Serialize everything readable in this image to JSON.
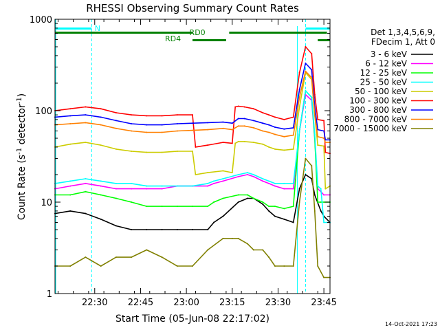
{
  "chart_data": {
    "type": "line",
    "title": "RHESSI Observing Summary Count Rates",
    "xlabel": "Start Time (05-Jun-08 22:17:02)",
    "ylabel_main": "Count Rate (s",
    "ylabel_sup1": "-1",
    "ylabel_mid": " detector",
    "ylabel_sup2": "-1",
    "ylabel_end": ")",
    "yscale": "log",
    "ylim": [
      1,
      1000
    ],
    "xlim_minutes": [
      0,
      90
    ],
    "x_tick_minutes": [
      13,
      28,
      43,
      58,
      73,
      88
    ],
    "x_tick_labels": [
      "22:30",
      "22:45",
      "23:00",
      "23:15",
      "23:30",
      "23:45"
    ],
    "y_tick_values": [
      1,
      10,
      100,
      1000
    ],
    "y_tick_labels": [
      "1",
      "10",
      "100",
      "1000"
    ],
    "footer_date": "14-Oct-2021 17:23",
    "legend_header": [
      "Det 1,3,4,5,6,9,",
      "FDecim 1, Att 0"
    ],
    "annotations": {
      "night": "N",
      "rd0": "RD0",
      "rd4": "RD4"
    },
    "state_bars": {
      "night": [
        [
          0,
          12
        ],
        [
          82,
          90
        ]
      ],
      "rd0": [
        [
          0,
          45
        ],
        [
          57,
          89
        ]
      ],
      "rd4": [
        [
          45,
          56
        ],
        [
          86,
          90
        ]
      ]
    },
    "night_lines_minutes": [
      12,
      82
    ],
    "colors": {
      "night": "#00ffff",
      "rd": "#008000"
    },
    "series": [
      {
        "name": "3 - 6 keV",
        "color": "#000000",
        "points": [
          [
            0,
            7.5
          ],
          [
            5,
            8
          ],
          [
            10,
            7.5
          ],
          [
            15,
            6.5
          ],
          [
            20,
            5.5
          ],
          [
            25,
            5
          ],
          [
            30,
            5
          ],
          [
            35,
            5
          ],
          [
            40,
            5
          ],
          [
            45,
            5
          ],
          [
            50,
            5
          ],
          [
            52,
            6
          ],
          [
            55,
            7
          ],
          [
            60,
            10
          ],
          [
            63,
            11
          ],
          [
            65,
            11
          ],
          [
            68,
            9.5
          ],
          [
            70,
            8
          ],
          [
            72,
            7
          ],
          [
            75,
            6.5
          ],
          [
            78,
            6
          ],
          [
            80,
            14
          ],
          [
            82,
            20
          ],
          [
            84,
            18
          ],
          [
            85,
            12
          ],
          [
            87,
            8
          ],
          [
            88,
            7
          ],
          [
            90,
            6
          ]
        ]
      },
      {
        "name": "6 - 12 keV",
        "color": "#ff00ff",
        "points": [
          [
            0,
            14
          ],
          [
            5,
            15
          ],
          [
            10,
            16
          ],
          [
            15,
            15
          ],
          [
            20,
            14
          ],
          [
            25,
            14
          ],
          [
            30,
            14
          ],
          [
            35,
            14
          ],
          [
            40,
            15
          ],
          [
            45,
            15
          ],
          [
            50,
            15
          ],
          [
            52,
            16
          ],
          [
            55,
            17
          ],
          [
            60,
            19
          ],
          [
            63,
            20
          ],
          [
            65,
            19
          ],
          [
            68,
            17
          ],
          [
            70,
            16
          ],
          [
            72,
            15
          ],
          [
            75,
            14
          ],
          [
            78,
            14
          ],
          [
            80,
            60
          ],
          [
            82,
            150
          ],
          [
            84,
            130
          ],
          [
            85,
            50
          ],
          [
            86,
            14
          ],
          [
            87,
            13
          ],
          [
            88,
            12
          ],
          [
            90,
            12
          ]
        ]
      },
      {
        "name": "12 - 25 keV",
        "color": "#00ff00",
        "points": [
          [
            0,
            12
          ],
          [
            5,
            12
          ],
          [
            10,
            13
          ],
          [
            15,
            12
          ],
          [
            20,
            11
          ],
          [
            25,
            10
          ],
          [
            30,
            9
          ],
          [
            35,
            9
          ],
          [
            40,
            9
          ],
          [
            45,
            9
          ],
          [
            50,
            9
          ],
          [
            52,
            10
          ],
          [
            55,
            11
          ],
          [
            60,
            12
          ],
          [
            63,
            12
          ],
          [
            65,
            11
          ],
          [
            68,
            10
          ],
          [
            70,
            9
          ],
          [
            72,
            9
          ],
          [
            75,
            8.5
          ],
          [
            78,
            9
          ],
          [
            80,
            60
          ],
          [
            82,
            165
          ],
          [
            84,
            140
          ],
          [
            85,
            50
          ],
          [
            86,
            10
          ],
          [
            87,
            10
          ],
          [
            88,
            10
          ],
          [
            90,
            10
          ]
        ]
      },
      {
        "name": "25 - 50 keV",
        "color": "#00ffff",
        "points": [
          [
            0,
            16
          ],
          [
            5,
            17
          ],
          [
            10,
            18
          ],
          [
            15,
            17
          ],
          [
            20,
            16
          ],
          [
            25,
            16
          ],
          [
            30,
            15
          ],
          [
            35,
            15
          ],
          [
            40,
            15
          ],
          [
            45,
            15
          ],
          [
            50,
            16
          ],
          [
            52,
            17
          ],
          [
            55,
            18
          ],
          [
            60,
            20
          ],
          [
            63,
            21
          ],
          [
            65,
            20
          ],
          [
            68,
            18
          ],
          [
            70,
            17
          ],
          [
            72,
            16
          ],
          [
            75,
            16
          ],
          [
            78,
            16
          ],
          [
            80,
            60
          ],
          [
            82,
            165
          ],
          [
            84,
            140
          ],
          [
            85,
            55
          ],
          [
            86,
            15
          ],
          [
            87,
            14
          ],
          [
            88,
            6
          ],
          [
            90,
            6
          ]
        ]
      },
      {
        "name": "50 - 100 keV",
        "color": "#cccc00",
        "points": [
          [
            0,
            40
          ],
          [
            5,
            43
          ],
          [
            10,
            45
          ],
          [
            15,
            42
          ],
          [
            20,
            38
          ],
          [
            25,
            36
          ],
          [
            30,
            35
          ],
          [
            35,
            35
          ],
          [
            40,
            36
          ],
          [
            45,
            36
          ],
          [
            46,
            20
          ],
          [
            50,
            21
          ],
          [
            55,
            22
          ],
          [
            58,
            21
          ],
          [
            59,
            44
          ],
          [
            60,
            46
          ],
          [
            62,
            46
          ],
          [
            65,
            45
          ],
          [
            68,
            43
          ],
          [
            70,
            40
          ],
          [
            72,
            38
          ],
          [
            75,
            37
          ],
          [
            78,
            38
          ],
          [
            80,
            110
          ],
          [
            82,
            260
          ],
          [
            84,
            220
          ],
          [
            85,
            90
          ],
          [
            86,
            42
          ],
          [
            88,
            41
          ],
          [
            88.5,
            14
          ],
          [
            90,
            15
          ]
        ]
      },
      {
        "name": "100 - 300 keV",
        "color": "#ff0000",
        "points": [
          [
            0,
            100
          ],
          [
            5,
            105
          ],
          [
            10,
            110
          ],
          [
            15,
            105
          ],
          [
            20,
            95
          ],
          [
            25,
            90
          ],
          [
            30,
            88
          ],
          [
            35,
            88
          ],
          [
            40,
            90
          ],
          [
            45,
            90
          ],
          [
            46,
            40
          ],
          [
            50,
            42
          ],
          [
            55,
            45
          ],
          [
            58,
            44
          ],
          [
            59,
            110
          ],
          [
            60,
            112
          ],
          [
            62,
            110
          ],
          [
            65,
            105
          ],
          [
            68,
            95
          ],
          [
            70,
            90
          ],
          [
            72,
            85
          ],
          [
            75,
            80
          ],
          [
            78,
            85
          ],
          [
            80,
            260
          ],
          [
            82,
            500
          ],
          [
            84,
            420
          ],
          [
            85,
            150
          ],
          [
            86,
            80
          ],
          [
            88,
            78
          ],
          [
            88.5,
            35
          ],
          [
            90,
            34
          ]
        ]
      },
      {
        "name": "300 - 800 keV",
        "color": "#0000ff",
        "points": [
          [
            0,
            85
          ],
          [
            5,
            88
          ],
          [
            10,
            90
          ],
          [
            15,
            85
          ],
          [
            20,
            78
          ],
          [
            25,
            72
          ],
          [
            30,
            70
          ],
          [
            35,
            70
          ],
          [
            40,
            72
          ],
          [
            45,
            73
          ],
          [
            50,
            74
          ],
          [
            55,
            75
          ],
          [
            58,
            73
          ],
          [
            60,
            82
          ],
          [
            62,
            82
          ],
          [
            65,
            78
          ],
          [
            68,
            73
          ],
          [
            70,
            70
          ],
          [
            72,
            66
          ],
          [
            75,
            63
          ],
          [
            78,
            65
          ],
          [
            80,
            170
          ],
          [
            82,
            330
          ],
          [
            84,
            280
          ],
          [
            85,
            110
          ],
          [
            86,
            62
          ],
          [
            88,
            60
          ],
          [
            88.5,
            48
          ],
          [
            90,
            48
          ]
        ]
      },
      {
        "name": "800 - 7000 keV",
        "color": "#ff8000",
        "points": [
          [
            0,
            70
          ],
          [
            5,
            72
          ],
          [
            10,
            74
          ],
          [
            15,
            70
          ],
          [
            20,
            64
          ],
          [
            25,
            60
          ],
          [
            30,
            58
          ],
          [
            35,
            58
          ],
          [
            40,
            60
          ],
          [
            45,
            61
          ],
          [
            50,
            62
          ],
          [
            55,
            64
          ],
          [
            58,
            62
          ],
          [
            60,
            68
          ],
          [
            62,
            68
          ],
          [
            65,
            65
          ],
          [
            68,
            60
          ],
          [
            70,
            58
          ],
          [
            72,
            55
          ],
          [
            75,
            52
          ],
          [
            78,
            54
          ],
          [
            80,
            140
          ],
          [
            82,
            270
          ],
          [
            84,
            230
          ],
          [
            85,
            90
          ],
          [
            86,
            52
          ],
          [
            88,
            50
          ],
          [
            88.5,
            45
          ],
          [
            90,
            45
          ]
        ]
      },
      {
        "name": "7000 - 15000 keV",
        "color": "#808000",
        "points": [
          [
            0,
            2
          ],
          [
            5,
            2
          ],
          [
            10,
            2.5
          ],
          [
            15,
            2
          ],
          [
            20,
            2.5
          ],
          [
            25,
            2.5
          ],
          [
            30,
            3
          ],
          [
            35,
            2.5
          ],
          [
            40,
            2
          ],
          [
            45,
            2
          ],
          [
            50,
            3
          ],
          [
            55,
            4
          ],
          [
            58,
            4
          ],
          [
            60,
            4
          ],
          [
            63,
            3.5
          ],
          [
            65,
            3
          ],
          [
            68,
            3
          ],
          [
            70,
            2.5
          ],
          [
            72,
            2
          ],
          [
            75,
            2
          ],
          [
            78,
            2
          ],
          [
            80,
            10
          ],
          [
            82,
            30
          ],
          [
            84,
            25
          ],
          [
            85,
            8
          ],
          [
            86,
            2
          ],
          [
            88,
            1.5
          ],
          [
            90,
            1.5
          ]
        ]
      }
    ]
  }
}
